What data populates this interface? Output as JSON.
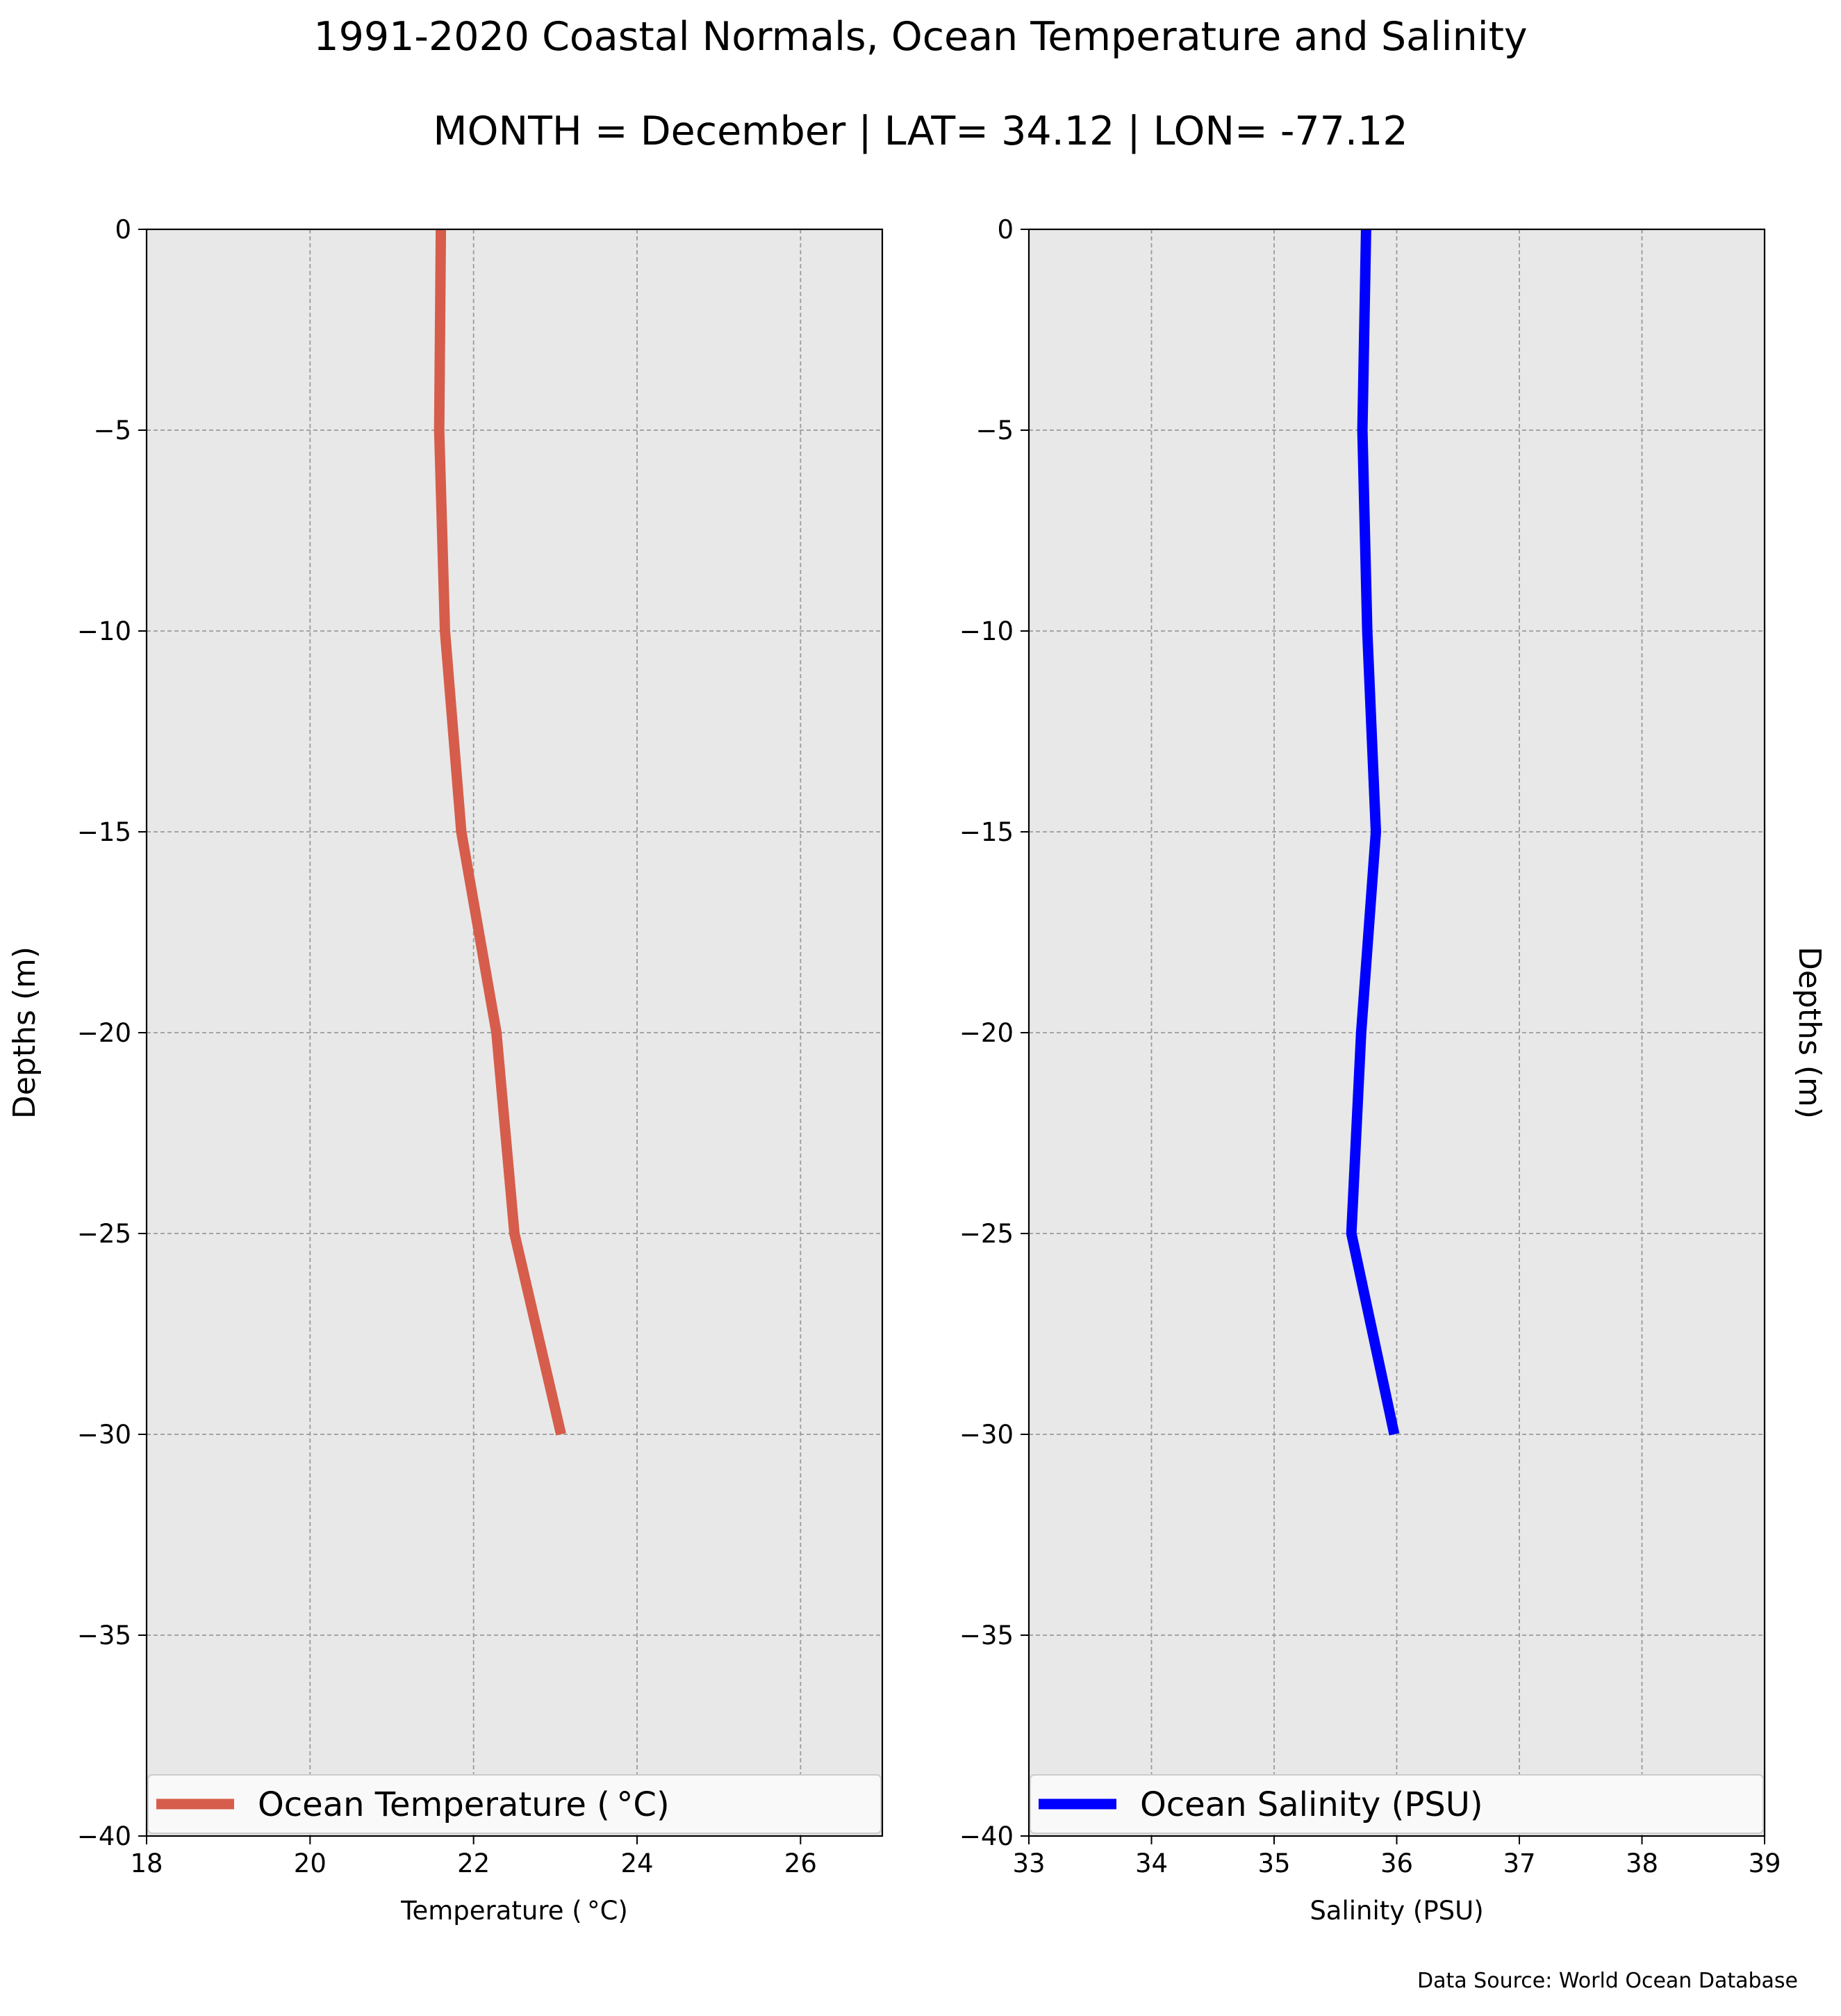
{
  "title": "1991-2020 Coastal Normals, Ocean Temperature and Salinity",
  "subtitle": "MONTH = December | LAT= 34.12 | LON= -77.12",
  "source_note": "Data Source: World Ocean Database",
  "colors": {
    "temperature": "#d65d4b",
    "salinity": "#0000ff",
    "plot_background": "#e8e8e8",
    "grid": "#9a9a9a"
  },
  "chart_data": [
    {
      "type": "line",
      "panel": "left",
      "xlabel": "Temperature ($^\\circ$C)",
      "xlabel_display": "Temperature ( °C)",
      "ylabel": "Depths (m)",
      "ylabel_position": "left",
      "xlim": [
        18,
        27
      ],
      "ylim": [
        -40,
        0
      ],
      "xticks": [
        18,
        20,
        22,
        24,
        26
      ],
      "yticks": [
        0,
        -5,
        -10,
        -15,
        -20,
        -25,
        -30,
        -35,
        -40
      ],
      "grid": true,
      "legend_placement": "lower-center",
      "series": [
        {
          "name": "Ocean Temperature ($^\\circ$C)",
          "name_display": "Ocean Temperature ( °C)",
          "color": "#d65d4b",
          "x": [
            21.6,
            21.58,
            21.65,
            21.85,
            22.28,
            22.5,
            23.07
          ],
          "y": [
            0,
            -5,
            -10,
            -15,
            -20,
            -25,
            -30
          ]
        }
      ]
    },
    {
      "type": "line",
      "panel": "right",
      "xlabel": "Salinity (PSU)",
      "ylabel": "Depths (m)",
      "ylabel_position": "right",
      "xlim": [
        33,
        39
      ],
      "ylim": [
        -40,
        0
      ],
      "xticks": [
        33,
        34,
        35,
        36,
        37,
        38,
        39
      ],
      "yticks": [
        0,
        -5,
        -10,
        -15,
        -20,
        -25,
        -30,
        -35,
        -40
      ],
      "grid": true,
      "legend_placement": "lower-center",
      "series": [
        {
          "name": "Ocean Salinity (PSU)",
          "color": "#0000ff",
          "x": [
            35.75,
            35.72,
            35.76,
            35.83,
            35.71,
            35.63,
            35.98
          ],
          "y": [
            0,
            -5,
            -10,
            -15,
            -20,
            -25,
            -30
          ]
        }
      ]
    }
  ]
}
